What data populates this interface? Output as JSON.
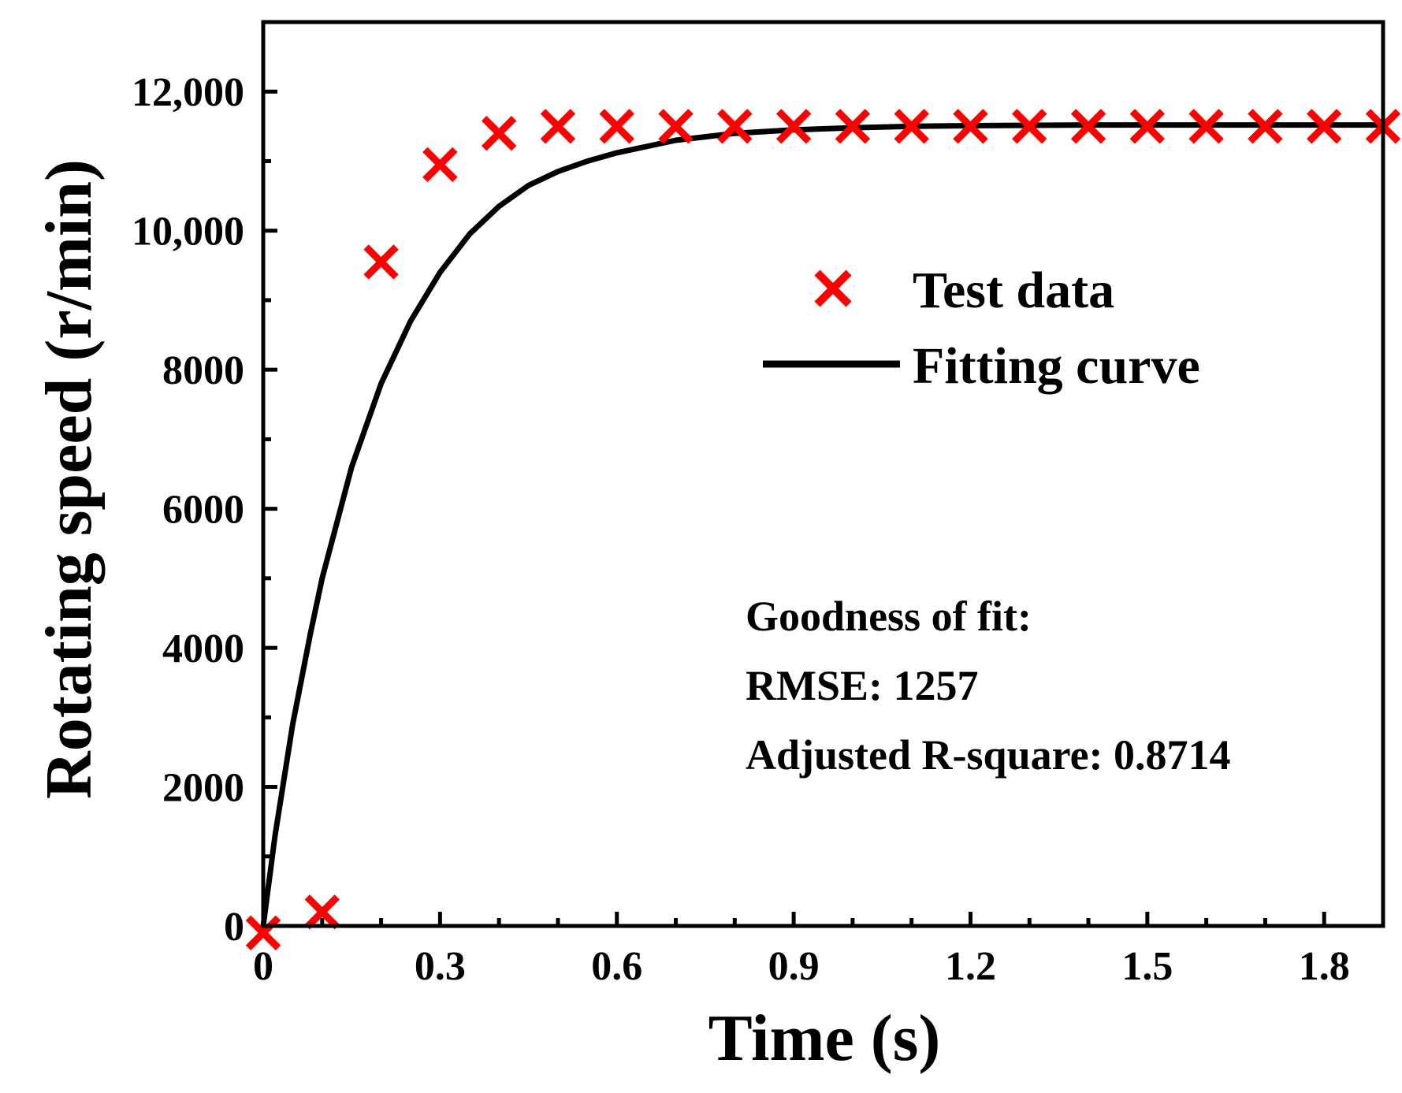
{
  "chart_data": {
    "type": "scatter",
    "title": "",
    "xlabel": "Time (s)",
    "ylabel": "Rotating speed (r/min)",
    "xlim": [
      0,
      1.9
    ],
    "ylim": [
      0,
      13000
    ],
    "x_ticks": [
      0,
      0.3,
      0.6,
      0.9,
      1.2,
      1.5,
      1.8
    ],
    "x_tick_labels": [
      "0",
      "0.3",
      "0.6",
      "0.9",
      "1.2",
      "1.5",
      "1.8"
    ],
    "x_minor_ticks": [
      0.1,
      0.2,
      0.4,
      0.5,
      0.7,
      0.8,
      1.0,
      1.1,
      1.3,
      1.4,
      1.6,
      1.7
    ],
    "y_ticks": [
      0,
      2000,
      4000,
      6000,
      8000,
      10000,
      12000
    ],
    "y_tick_labels": [
      "0",
      "2000",
      "4000",
      "6000",
      "8000",
      "10,000",
      "12,000"
    ],
    "y_minor_ticks": [
      1000,
      3000,
      5000,
      7000,
      9000,
      11000
    ],
    "grid": false,
    "legend_position": "top-right",
    "series": [
      {
        "name": "Test data",
        "kind": "scatter",
        "marker": "x",
        "color": "#ff0000",
        "x": [
          0,
          0.1,
          0.2,
          0.3,
          0.4,
          0.5,
          0.6,
          0.7,
          0.8,
          0.9,
          1.0,
          1.1,
          1.2,
          1.3,
          1.4,
          1.5,
          1.6,
          1.7,
          1.8,
          1.9
        ],
        "y": [
          -100,
          200,
          9550,
          10950,
          11400,
          11500,
          11500,
          11500,
          11500,
          11500,
          11500,
          11500,
          11500,
          11500,
          11500,
          11500,
          11500,
          11500,
          11500,
          11500
        ]
      },
      {
        "name": "Fitting curve",
        "kind": "line",
        "color": "#000000",
        "x": [
          0,
          0.02,
          0.05,
          0.08,
          0.1,
          0.15,
          0.2,
          0.25,
          0.3,
          0.35,
          0.4,
          0.45,
          0.5,
          0.55,
          0.6,
          0.7,
          0.8,
          0.9,
          1.0,
          1.1,
          1.2,
          1.4,
          1.6,
          1.8,
          1.9
        ],
        "y": [
          0,
          1300,
          2900,
          4200,
          5000,
          6600,
          7800,
          8700,
          9400,
          9950,
          10350,
          10650,
          10850,
          11000,
          11120,
          11300,
          11400,
          11450,
          11480,
          11500,
          11510,
          11520,
          11520,
          11520,
          11520
        ]
      }
    ],
    "annotations": [
      "Goodness of fit:",
      "RMSE: 1257",
      "Adjusted R-square: 0.8714"
    ]
  }
}
